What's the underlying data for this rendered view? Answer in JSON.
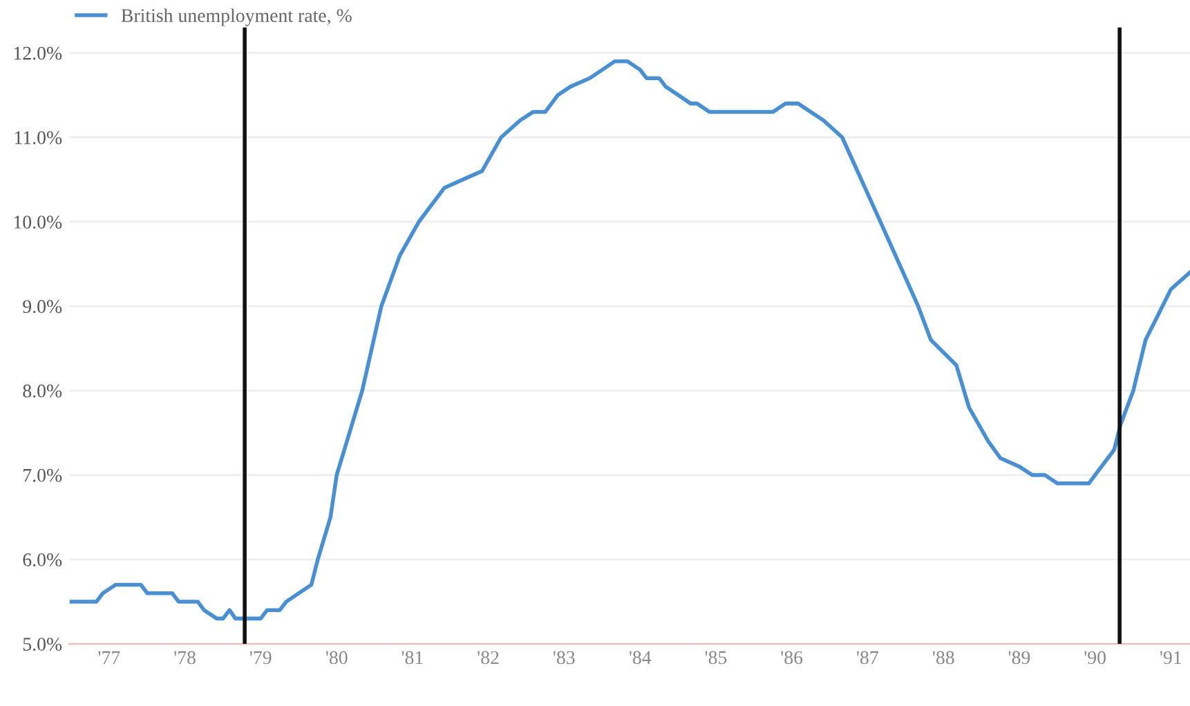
{
  "chart_data": {
    "type": "line",
    "legend": "top left",
    "grid": "y",
    "marker": "none",
    "line_style": "solid",
    "xlim": [
      "1976-12-20",
      "1991-10-01"
    ],
    "ylim": [
      5.0,
      12.3
    ],
    "xticks": [
      {
        "value": "1977-07",
        "label": "'77"
      },
      {
        "value": "1978-07",
        "label": "'78"
      },
      {
        "value": "1979-07",
        "label": "'79"
      },
      {
        "value": "1980-07",
        "label": "'80"
      },
      {
        "value": "1981-07",
        "label": "'81"
      },
      {
        "value": "1982-07",
        "label": "'82"
      },
      {
        "value": "1983-07",
        "label": "'83"
      },
      {
        "value": "1984-07",
        "label": "'84"
      },
      {
        "value": "1985-07",
        "label": "'85"
      },
      {
        "value": "1986-07",
        "label": "'86"
      },
      {
        "value": "1987-07",
        "label": "'87"
      },
      {
        "value": "1988-07",
        "label": "'88"
      },
      {
        "value": "1989-07",
        "label": "'89"
      },
      {
        "value": "1990-07",
        "label": "'90"
      },
      {
        "value": "1991-07",
        "label": "'91"
      }
    ],
    "yticks": [
      {
        "value": 5,
        "label": "5.0%"
      },
      {
        "value": 6,
        "label": "6.0%"
      },
      {
        "value": 7,
        "label": "7.0%"
      },
      {
        "value": 8,
        "label": "8.0%"
      },
      {
        "value": 9,
        "label": "9.0%"
      },
      {
        "value": 10,
        "label": "10.0%"
      },
      {
        "value": 11,
        "label": "11.0%"
      },
      {
        "value": 12,
        "label": "12.0%"
      }
    ],
    "ref_lines": [
      {
        "axis": "x",
        "value": "1979-04-15",
        "color": "#111111"
      },
      {
        "axis": "x",
        "value": "1990-10-27",
        "color": "#111111"
      }
    ],
    "series": [
      {
        "name": "British unemployment rate, %",
        "color": "#4a8fd0",
        "x": [
          "1977-01",
          "1977-05",
          "1977-06",
          "1977-08",
          "1977-12",
          "1978-01",
          "1978-05",
          "1978-06",
          "1978-09",
          "1978-10",
          "1978-12",
          "1979-01",
          "1979-02",
          "1979-03",
          "1979-07",
          "1979-08",
          "1979-10",
          "1979-11",
          "1980-03",
          "1980-04",
          "1980-06",
          "1980-07",
          "1980-11",
          "1981-02",
          "1981-05",
          "1981-08",
          "1981-12",
          "1982-03",
          "1982-06",
          "1982-09",
          "1982-12",
          "1983-02",
          "1983-04",
          "1983-06",
          "1983-08",
          "1983-11",
          "1984-01",
          "1984-03",
          "1984-05",
          "1984-07",
          "1984-08",
          "1984-10",
          "1984-11",
          "1985-01",
          "1985-03",
          "1985-04",
          "1985-06",
          "1986-04",
          "1986-06",
          "1986-08",
          "1986-10",
          "1986-12",
          "1987-03",
          "1987-06",
          "1987-09",
          "1987-12",
          "1988-03",
          "1988-05",
          "1988-09",
          "1988-11",
          "1989-02",
          "1989-04",
          "1989-07",
          "1989-09",
          "1989-11",
          "1990-01",
          "1990-06",
          "1990-07",
          "1990-10",
          "1990-11",
          "1991-01",
          "1991-03",
          "1991-05",
          "1991-07",
          "1991-10"
        ],
        "values": [
          5.5,
          5.5,
          5.6,
          5.7,
          5.7,
          5.6,
          5.6,
          5.5,
          5.5,
          5.4,
          5.3,
          5.3,
          5.4,
          5.3,
          5.3,
          5.4,
          5.4,
          5.5,
          5.7,
          6.0,
          6.5,
          7.0,
          8.0,
          9.0,
          9.6,
          10.0,
          10.4,
          10.5,
          10.6,
          11.0,
          11.2,
          11.3,
          11.3,
          11.5,
          11.6,
          11.7,
          11.8,
          11.9,
          11.9,
          11.8,
          11.7,
          11.7,
          11.6,
          11.5,
          11.4,
          11.4,
          11.3,
          11.3,
          11.4,
          11.4,
          11.3,
          11.2,
          11.0,
          10.5,
          10.0,
          9.5,
          9.0,
          8.6,
          8.3,
          7.8,
          7.4,
          7.2,
          7.1,
          7.0,
          7.0,
          6.9,
          6.9,
          7.0,
          7.3,
          7.6,
          8.0,
          8.6,
          8.9,
          9.2,
          9.4
        ]
      }
    ]
  }
}
